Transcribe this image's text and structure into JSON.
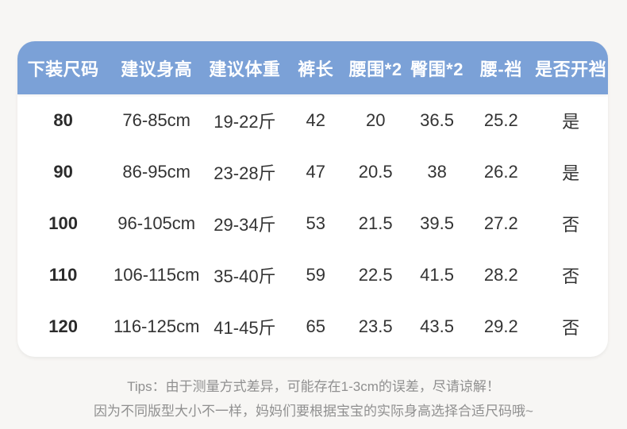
{
  "theme": {
    "page_background": "#f7f6f4",
    "header_background": "#7BA1D7",
    "header_text_color": "#ffffff",
    "body_text_color": "#333333",
    "tips_text_color": "#909090",
    "card_background": "#ffffff"
  },
  "table": {
    "headers": [
      "下装尺码",
      "建议身高",
      "建议体重",
      "裤长",
      "腰围*2",
      "臀围*2",
      "腰-裆",
      "是否开裆"
    ],
    "rows": [
      [
        "80",
        "76-85cm",
        "19-22斤",
        "42",
        "20",
        "36.5",
        "25.2",
        "是"
      ],
      [
        "90",
        "86-95cm",
        "23-28斤",
        "47",
        "20.5",
        "38",
        "26.2",
        "是"
      ],
      [
        "100",
        "96-105cm",
        "29-34斤",
        "53",
        "21.5",
        "39.5",
        "27.2",
        "否"
      ],
      [
        "110",
        "106-115cm",
        "35-40斤",
        "59",
        "22.5",
        "41.5",
        "28.2",
        "否"
      ],
      [
        "120",
        "116-125cm",
        "41-45斤",
        "65",
        "23.5",
        "43.5",
        "29.2",
        "否"
      ]
    ]
  },
  "tips": {
    "line1": "Tips：由于测量方式差异，可能存在1-3cm的误差，尽请谅解！",
    "line2": "因为不同版型大小不一样，妈妈们要根据宝宝的实际身高选择合适尺码哦~"
  }
}
